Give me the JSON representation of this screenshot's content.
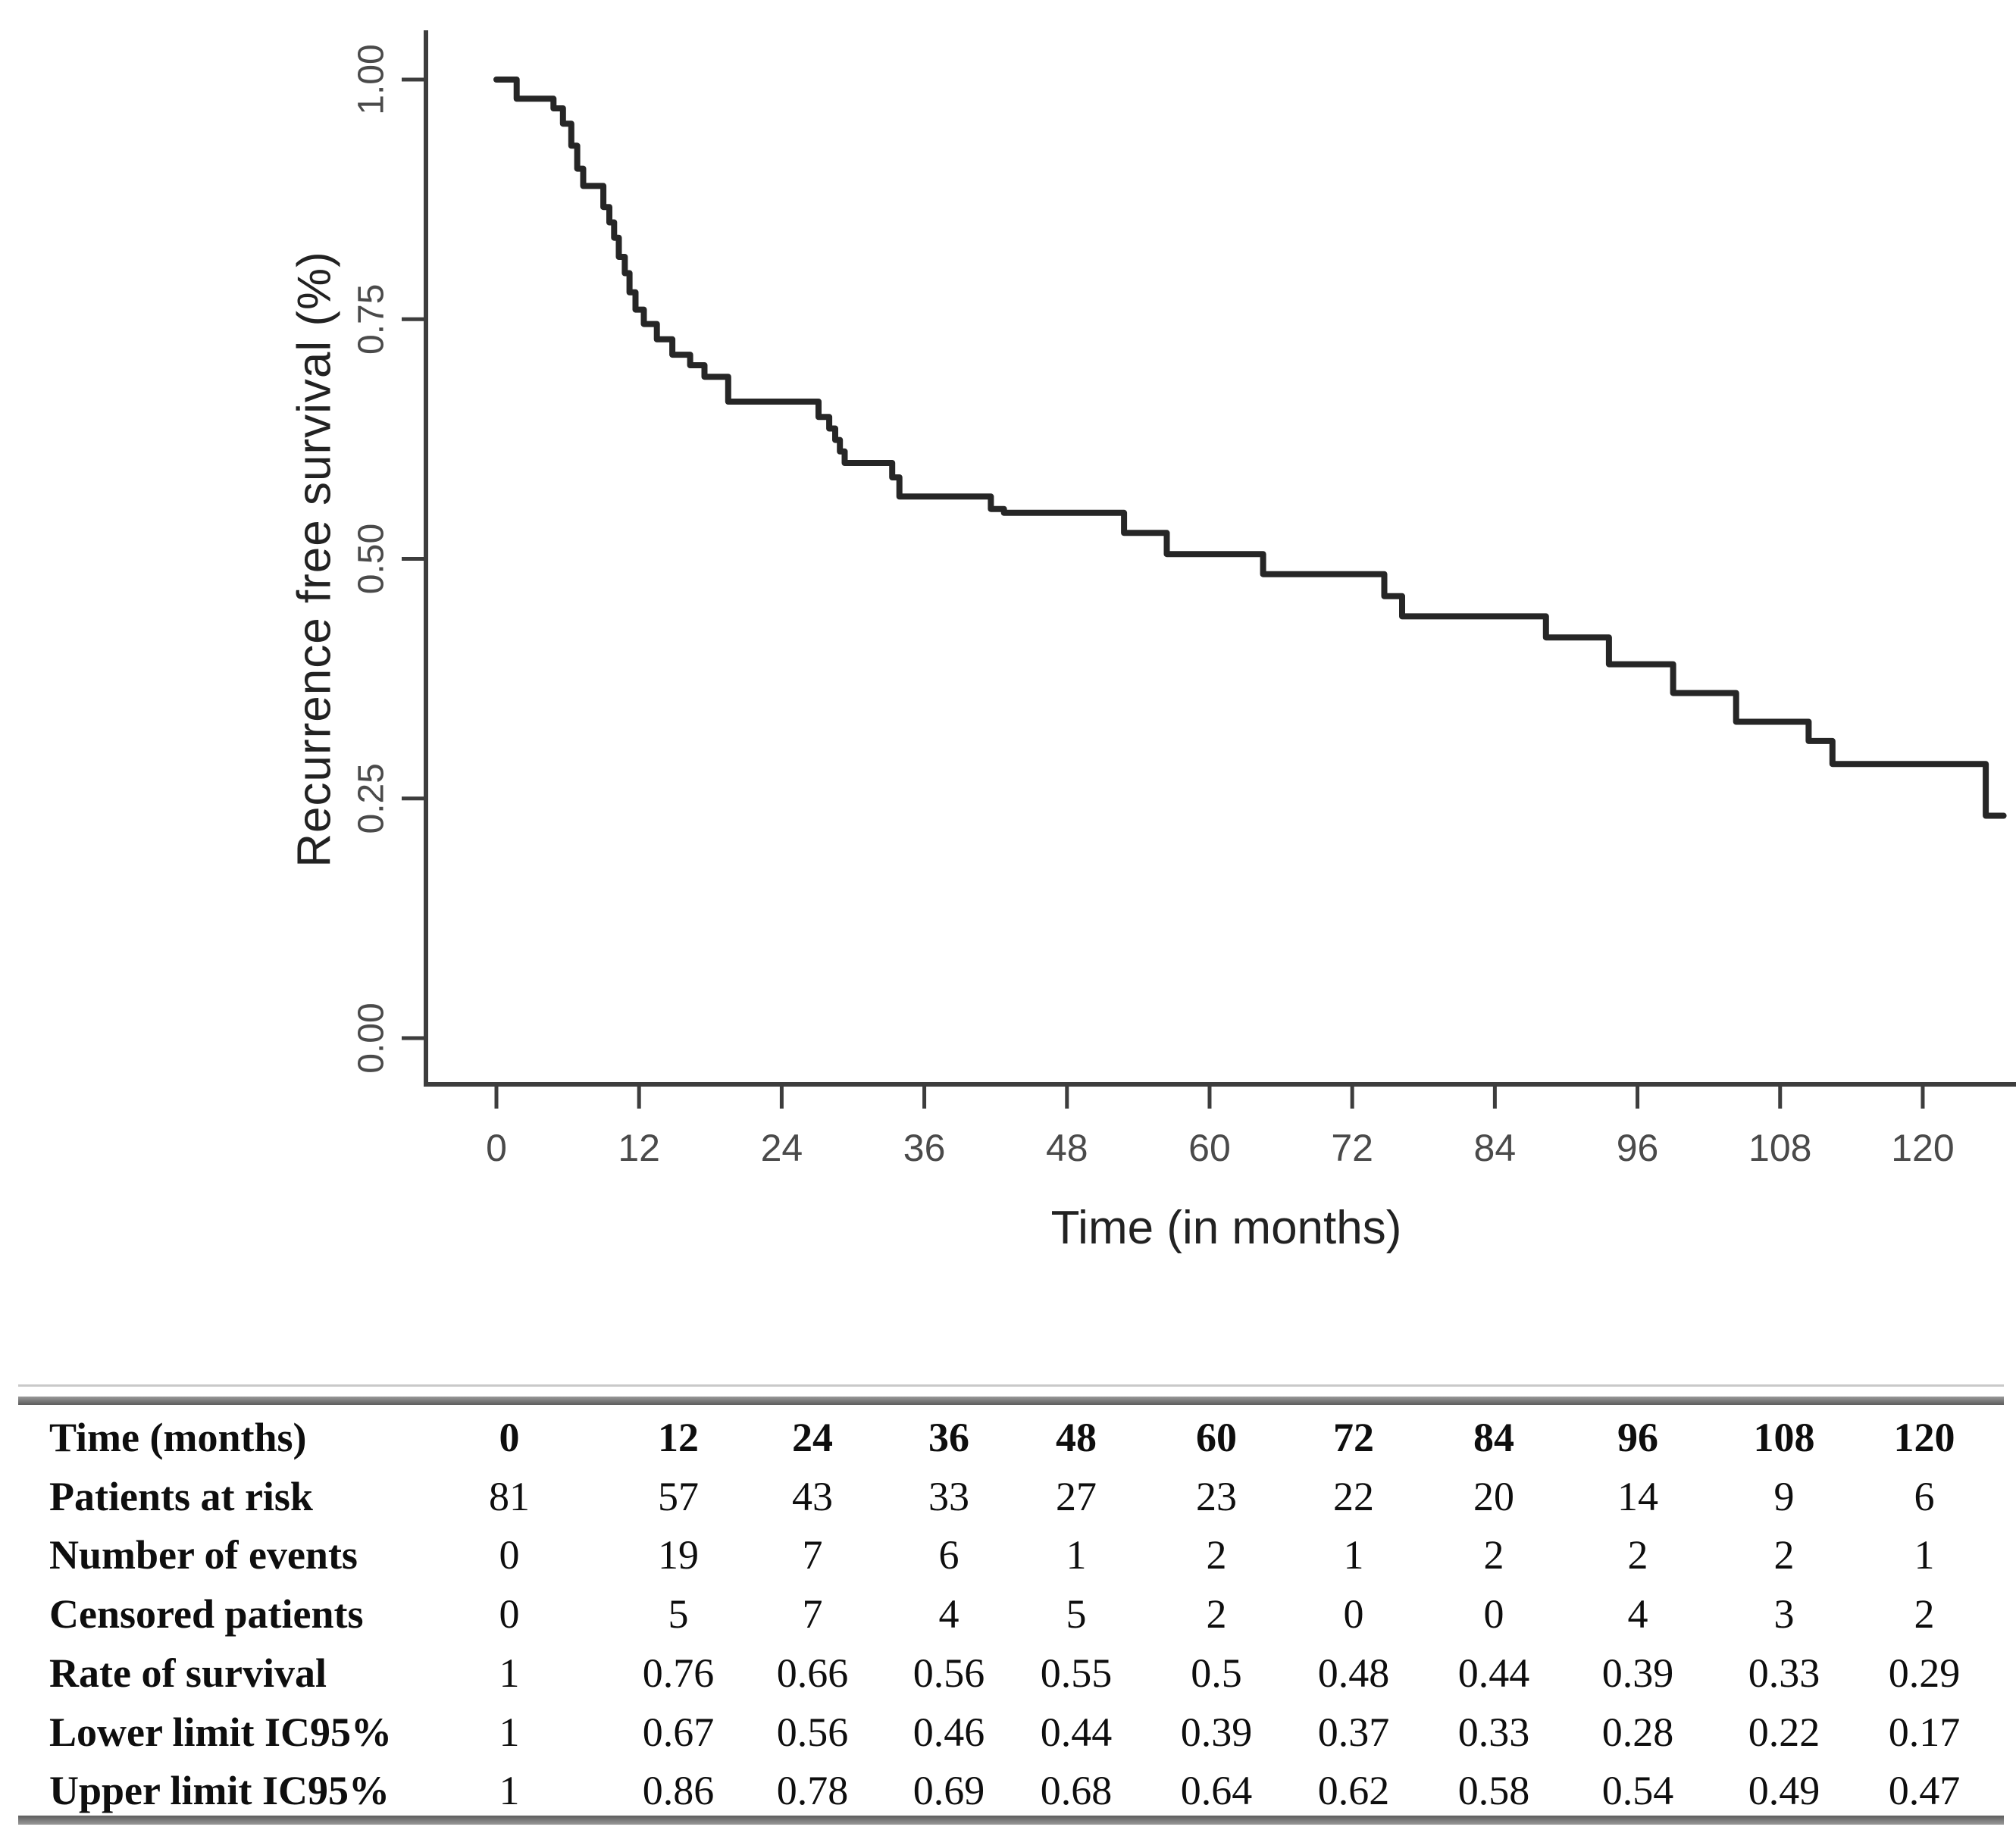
{
  "chart_data": {
    "type": "line",
    "subtype": "kaplan-meier-step-curve",
    "title": "",
    "xlabel": "Time (in months)",
    "ylabel": "Recurrence free survival (%)",
    "x_ticks": [
      0,
      12,
      24,
      36,
      48,
      60,
      72,
      84,
      96,
      108,
      120
    ],
    "y_ticks": [
      {
        "label": "1.00",
        "value": 1.0
      },
      {
        "label": "0.75",
        "value": 0.75
      },
      {
        "label": "0.50",
        "value": 0.5
      },
      {
        "label": "0.25",
        "value": 0.25
      },
      {
        "label": "0.00",
        "value": 0.0
      }
    ],
    "xlim": [
      0,
      128
    ],
    "ylim": [
      0,
      1
    ],
    "grid": false,
    "legend": "none",
    "line_color": "#262626",
    "axis_color": "#3d3d3d",
    "tick_label_color": "#4a4a4a",
    "series": [
      {
        "name": "Recurrence free survival",
        "points": [
          [
            0,
            1.0
          ],
          [
            1.7,
            0.98
          ],
          [
            4.8,
            0.97
          ],
          [
            5.6,
            0.954
          ],
          [
            6.3,
            0.931
          ],
          [
            6.8,
            0.907
          ],
          [
            7.3,
            0.889
          ],
          [
            9.0,
            0.867
          ],
          [
            9.5,
            0.851
          ],
          [
            9.9,
            0.835
          ],
          [
            10.3,
            0.815
          ],
          [
            10.8,
            0.798
          ],
          [
            11.2,
            0.778
          ],
          [
            11.7,
            0.76
          ],
          [
            12.4,
            0.745
          ],
          [
            13.5,
            0.729
          ],
          [
            14.8,
            0.713
          ],
          [
            16.3,
            0.702
          ],
          [
            17.5,
            0.69
          ],
          [
            19.5,
            0.664
          ],
          [
            27.1,
            0.648
          ],
          [
            28.0,
            0.636
          ],
          [
            28.5,
            0.624
          ],
          [
            28.9,
            0.612
          ],
          [
            29.3,
            0.6
          ],
          [
            33.3,
            0.585
          ],
          [
            33.9,
            0.565
          ],
          [
            41.6,
            0.552
          ],
          [
            42.7,
            0.548
          ],
          [
            52.8,
            0.527
          ],
          [
            56.4,
            0.505
          ],
          [
            64.5,
            0.484
          ],
          [
            74.7,
            0.461
          ],
          [
            76.2,
            0.44
          ],
          [
            88.3,
            0.418
          ],
          [
            93.6,
            0.39
          ],
          [
            99.0,
            0.36
          ],
          [
            104.3,
            0.33
          ],
          [
            110.4,
            0.31
          ],
          [
            112.4,
            0.286
          ],
          [
            125.3,
            0.232
          ]
        ],
        "end_x": 126.8
      }
    ]
  },
  "table": {
    "rows": [
      {
        "label": "Time (months)",
        "header": true,
        "values": [
          "0",
          "12",
          "24",
          "36",
          "48",
          "60",
          "72",
          "84",
          "96",
          "108",
          "120"
        ]
      },
      {
        "label": "Patients at risk",
        "header": false,
        "values": [
          "81",
          "57",
          "43",
          "33",
          "27",
          "23",
          "22",
          "20",
          "14",
          "9",
          "6"
        ]
      },
      {
        "label": "Number of events",
        "header": false,
        "values": [
          "0",
          "19",
          "7",
          "6",
          "1",
          "2",
          "1",
          "2",
          "2",
          "2",
          "1"
        ]
      },
      {
        "label": "Censored patients",
        "header": false,
        "values": [
          "0",
          "5",
          "7",
          "4",
          "5",
          "2",
          "0",
          "0",
          "4",
          "3",
          "2"
        ]
      },
      {
        "label": "Rate of survival",
        "header": false,
        "values": [
          "1",
          "0.76",
          "0.66",
          "0.56",
          "0.55",
          "0.5",
          "0.48",
          "0.44",
          "0.39",
          "0.33",
          "0.29"
        ]
      },
      {
        "label": "Lower limit IC95%",
        "header": false,
        "values": [
          "1",
          "0.67",
          "0.56",
          "0.46",
          "0.44",
          "0.39",
          "0.37",
          "0.33",
          "0.28",
          "0.22",
          "0.17"
        ]
      },
      {
        "label": "Upper limit IC95%",
        "header": false,
        "values": [
          "1",
          "0.86",
          "0.78",
          "0.69",
          "0.68",
          "0.64",
          "0.62",
          "0.58",
          "0.54",
          "0.49",
          "0.47"
        ]
      }
    ]
  }
}
